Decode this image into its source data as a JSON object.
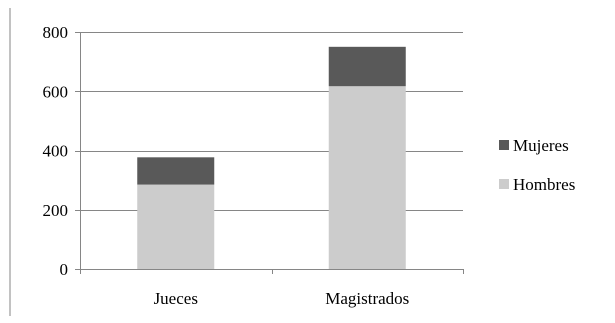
{
  "chart_data": {
    "type": "bar",
    "stacked": true,
    "categories": [
      "Jueces",
      "Magistrados"
    ],
    "series": [
      {
        "name": "Hombres",
        "values": [
          285,
          617
        ],
        "color": "#cccccc"
      },
      {
        "name": "Mujeres",
        "values": [
          92,
          133
        ],
        "color": "#595959"
      }
    ],
    "ylim": [
      0,
      800
    ],
    "yticks": [
      0,
      200,
      400,
      600,
      800
    ],
    "grid": true,
    "legend": {
      "placement": "right",
      "order": [
        "Mujeres",
        "Hombres"
      ]
    }
  },
  "colors": {
    "gridline": "#868686",
    "axis": "#868686",
    "frame": "#868686"
  }
}
